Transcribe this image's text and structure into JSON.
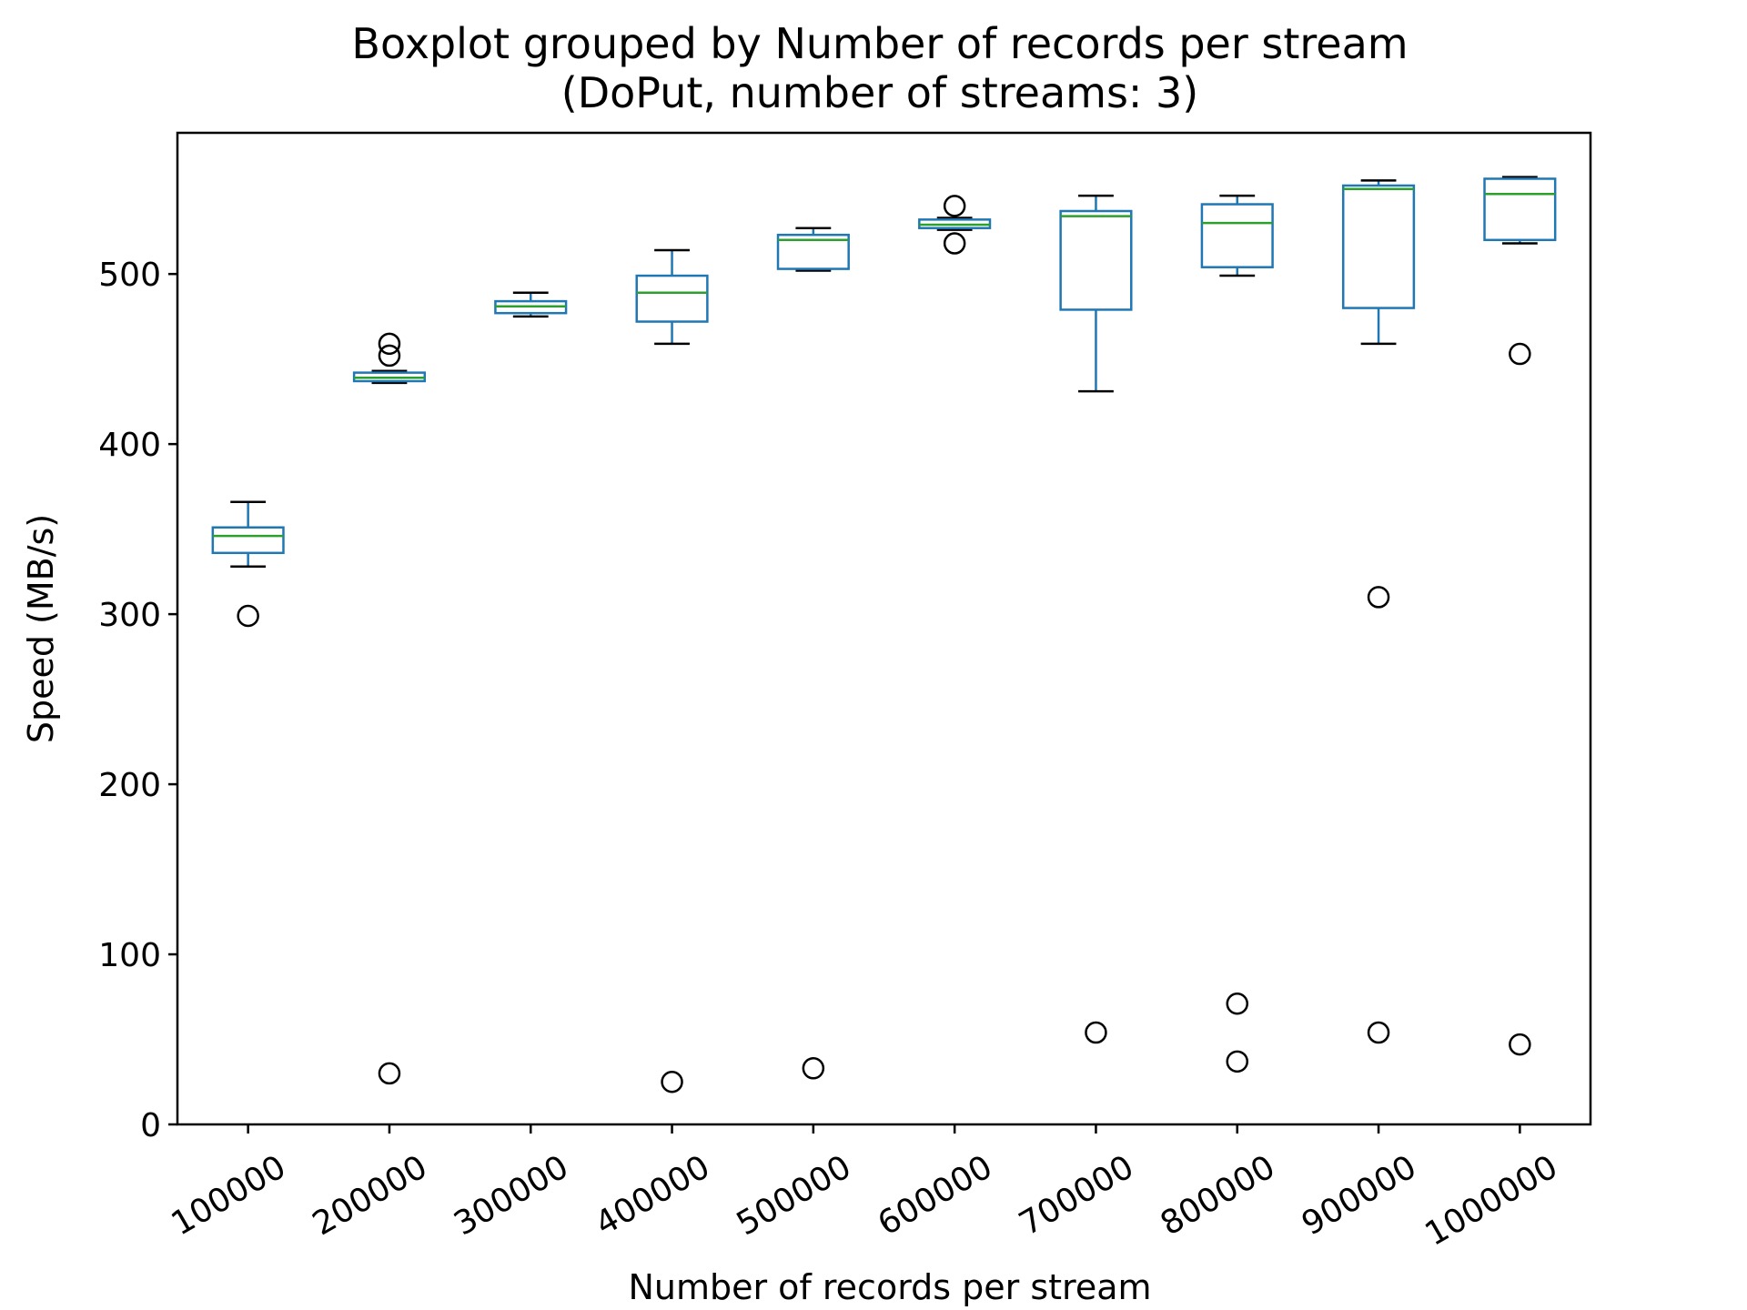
{
  "chart_data": {
    "type": "box",
    "title": "Boxplot grouped by Number of records per stream",
    "subtitle": "(DoPut, number of streams: 3)",
    "xlabel": "Number of records per stream",
    "ylabel": "Speed (MB/s)",
    "ylim": [
      0,
      583
    ],
    "yticks": [
      0,
      100,
      200,
      300,
      400,
      500
    ],
    "grid": false,
    "colors": {
      "box": "#1f77b4",
      "median": "#2ca02c",
      "whisker": "#1f77b4",
      "cap": "#000000",
      "flier": "#000000"
    },
    "categories": [
      "100000",
      "200000",
      "300000",
      "400000",
      "500000",
      "600000",
      "700000",
      "800000",
      "900000",
      "1000000"
    ],
    "boxes": [
      {
        "category": "100000",
        "whislo": 328,
        "q1": 336,
        "med": 346,
        "q3": 351,
        "whishi": 366,
        "fliers": [
          299
        ]
      },
      {
        "category": "200000",
        "whislo": 436,
        "q1": 437,
        "med": 439,
        "q3": 442,
        "whishi": 443,
        "fliers": [
          30,
          452,
          459
        ]
      },
      {
        "category": "300000",
        "whislo": 475,
        "q1": 477,
        "med": 481,
        "q3": 484,
        "whishi": 489,
        "fliers": []
      },
      {
        "category": "400000",
        "whislo": 459,
        "q1": 472,
        "med": 489,
        "q3": 499,
        "whishi": 514,
        "fliers": [
          25
        ]
      },
      {
        "category": "500000",
        "whislo": 502,
        "q1": 503,
        "med": 520,
        "q3": 523,
        "whishi": 527,
        "fliers": [
          33
        ]
      },
      {
        "category": "600000",
        "whislo": 526,
        "q1": 527,
        "med": 529,
        "q3": 532,
        "whishi": 533,
        "fliers": [
          518,
          540
        ]
      },
      {
        "category": "700000",
        "whislo": 431,
        "q1": 479,
        "med": 534,
        "q3": 537,
        "whishi": 546,
        "fliers": [
          54
        ]
      },
      {
        "category": "800000",
        "whislo": 499,
        "q1": 504,
        "med": 530,
        "q3": 541,
        "whishi": 546,
        "fliers": [
          37,
          71
        ]
      },
      {
        "category": "900000",
        "whislo": 459,
        "q1": 480,
        "med": 550,
        "q3": 552,
        "whishi": 555,
        "fliers": [
          54,
          310
        ]
      },
      {
        "category": "1000000",
        "whislo": 518,
        "q1": 520,
        "med": 547,
        "q3": 556,
        "whishi": 557,
        "fliers": [
          47,
          453
        ]
      }
    ]
  }
}
